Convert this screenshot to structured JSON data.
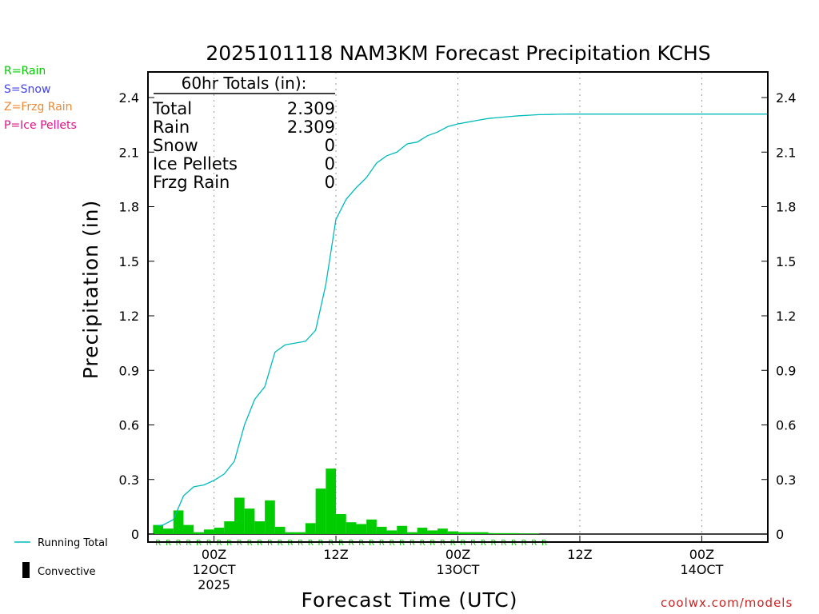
{
  "title": "2025101118 NAM3KM Forecast Precipitation KCHS",
  "ylabel": "Precipitation (in)",
  "xlabel": "Forecast Time (UTC)",
  "credit": "coolwx.com/models",
  "colors": {
    "rain": "#00cc00",
    "running_total": "#00bbbb",
    "rain_legend": "#00cc00",
    "snow_legend": "#4444ee",
    "frzg_legend": "#ee8833",
    "ice_legend": "#dd1188",
    "credit": "#cc2222",
    "axis": "#000000",
    "grid": "#999999"
  },
  "type_legend": [
    {
      "text": "R=Rain",
      "color_key": "rain_legend"
    },
    {
      "text": "S=Snow",
      "color_key": "snow_legend"
    },
    {
      "text": "Z=Frzg Rain",
      "color_key": "frzg_legend"
    },
    {
      "text": "P=Ice Pellets",
      "color_key": "ice_legend"
    }
  ],
  "series_legend": {
    "running_total": "Running Total",
    "convective": "Convective"
  },
  "totals": {
    "heading": "60hr Totals (in):",
    "rows": [
      {
        "label": "Total",
        "value": "2.309"
      },
      {
        "label": "Rain",
        "value": "2.309"
      },
      {
        "label": "Snow",
        "value": "0"
      },
      {
        "label": "Ice Pellets",
        "value": "0"
      },
      {
        "label": "Frzg Rain",
        "value": "0"
      }
    ]
  },
  "chart_data": {
    "type": "bar",
    "title": "2025101118 NAM3KM Forecast Precipitation KCHS",
    "xlabel": "Forecast Time (UTC)",
    "ylabel": "Precipitation (in)",
    "ylim": [
      0,
      2.55
    ],
    "xlim_hours": [
      -0.5,
      60.5
    ],
    "y_ticks": [
      0,
      0.3,
      0.6,
      0.9,
      1.2,
      1.5,
      1.8,
      2.1,
      2.4
    ],
    "y_tick_labels": [
      "0",
      "0.3",
      "0.6",
      "0.9",
      "1.2",
      "1.5",
      "1.8",
      "2.1",
      "2.4"
    ],
    "x_ticks": [
      {
        "hour": 6,
        "lines": [
          "00Z",
          "12OCT",
          "2025"
        ]
      },
      {
        "hour": 18,
        "lines": [
          "12Z"
        ]
      },
      {
        "hour": 30,
        "lines": [
          "00Z",
          "13OCT"
        ]
      },
      {
        "hour": 42,
        "lines": [
          "12Z"
        ]
      },
      {
        "hour": 54,
        "lines": [
          "00Z",
          "14OCT"
        ]
      }
    ],
    "hours": [
      1,
      2,
      3,
      4,
      5,
      6,
      7,
      8,
      9,
      10,
      11,
      12,
      13,
      14,
      15,
      16,
      17,
      18,
      19,
      20,
      21,
      22,
      23,
      24,
      25,
      26,
      27,
      28,
      29,
      30,
      31,
      32,
      33,
      34,
      35,
      36,
      37,
      38,
      39,
      40,
      41,
      42,
      43,
      44,
      45,
      46,
      47,
      48,
      49,
      50,
      51,
      52,
      53,
      54,
      55,
      56,
      57,
      58,
      59,
      60
    ],
    "series": [
      {
        "name": "Rain",
        "type": "bar",
        "values": [
          0.05,
          0.03,
          0.13,
          0.05,
          0.01,
          0.025,
          0.035,
          0.07,
          0.2,
          0.14,
          0.07,
          0.185,
          0.04,
          0.01,
          0.01,
          0.06,
          0.25,
          0.36,
          0.11,
          0.065,
          0.055,
          0.08,
          0.04,
          0.02,
          0.045,
          0.01,
          0.035,
          0.02,
          0.03,
          0.015,
          0.01,
          0.01,
          0.01,
          0.005,
          0.005,
          0.005,
          0.003,
          0.003,
          0,
          0,
          0,
          0,
          0,
          0,
          0,
          0,
          0,
          0,
          0,
          0,
          0,
          0,
          0,
          0,
          0,
          0,
          0,
          0,
          0,
          0
        ]
      },
      {
        "name": "Running Total",
        "type": "line",
        "values": [
          0.05,
          0.08,
          0.21,
          0.26,
          0.27,
          0.295,
          0.33,
          0.4,
          0.6,
          0.74,
          0.81,
          1.0,
          1.04,
          1.05,
          1.06,
          1.12,
          1.37,
          1.73,
          1.84,
          1.905,
          1.96,
          2.04,
          2.08,
          2.1,
          2.145,
          2.155,
          2.19,
          2.21,
          2.24,
          2.255,
          2.265,
          2.275,
          2.285,
          2.29,
          2.295,
          2.3,
          2.303,
          2.306,
          2.307,
          2.308,
          2.309,
          2.309,
          2.309,
          2.309,
          2.309,
          2.309,
          2.309,
          2.309,
          2.309,
          2.309,
          2.309,
          2.309,
          2.309,
          2.309,
          2.309,
          2.309,
          2.309,
          2.309,
          2.309,
          2.309
        ]
      }
    ],
    "ptype_markers": {
      "symbol": "R",
      "hours": [
        1,
        2,
        3,
        4,
        5,
        6,
        7,
        8,
        9,
        10,
        11,
        12,
        13,
        14,
        15,
        16,
        17,
        18,
        19,
        20,
        21,
        22,
        23,
        24,
        25,
        26,
        27,
        28,
        29,
        30,
        31,
        32,
        33,
        34,
        35,
        36,
        37,
        38,
        39
      ]
    }
  }
}
